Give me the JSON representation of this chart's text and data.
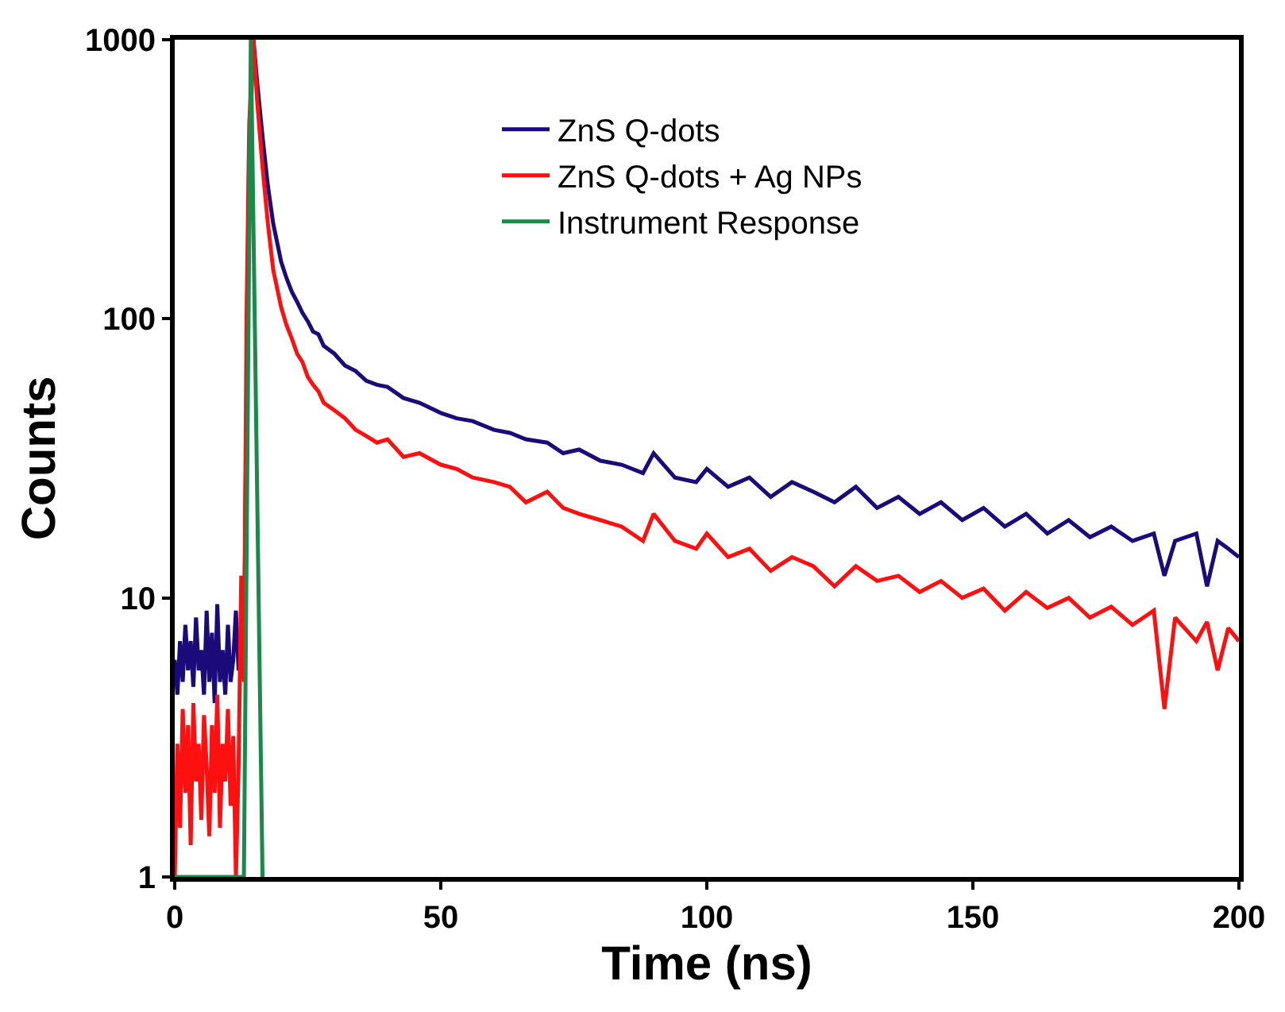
{
  "chart_data": {
    "type": "line",
    "xlabel": "Time (ns)",
    "ylabel": "Counts",
    "log": "y",
    "legend": "top right",
    "marker": "none",
    "line_style": "solid",
    "xlim": [
      0,
      200
    ],
    "xticks": [
      0,
      50,
      100,
      150,
      200
    ],
    "ylim": [
      1,
      1000
    ],
    "yticks": [
      1,
      10,
      100,
      1000
    ],
    "series": [
      {
        "name": "ZnS Q-dots",
        "color": "#1a0a7a",
        "x": [
          0,
          0.5,
          1,
          1.5,
          2,
          2.5,
          3,
          3.5,
          4,
          4.5,
          5,
          5.5,
          6,
          6.5,
          7,
          7.5,
          8,
          8.5,
          9,
          9.5,
          10,
          10.5,
          11,
          11.5,
          12,
          12.5,
          13,
          13.5,
          14,
          14.8,
          15.5,
          16.5,
          17.5,
          18.5,
          20,
          21,
          22,
          23,
          24,
          25,
          26,
          27,
          28,
          30,
          32,
          34,
          36,
          38,
          40,
          43,
          46,
          50,
          53,
          56,
          60,
          63,
          66,
          70,
          73,
          76,
          80,
          84,
          88,
          90,
          94,
          98,
          100,
          104,
          108,
          112,
          116,
          120,
          124,
          128,
          132,
          136,
          140,
          144,
          148,
          152,
          156,
          160,
          164,
          168,
          172,
          176,
          180,
          184,
          186,
          188,
          192,
          194,
          196,
          198,
          200
        ],
        "values": [
          6,
          4.5,
          7,
          5,
          8,
          5.5,
          7,
          4.8,
          8.5,
          5.5,
          6.5,
          4.5,
          9,
          5,
          7.5,
          4.2,
          9.5,
          5,
          6.5,
          4.5,
          8,
          5,
          6,
          9,
          5.5,
          7,
          6,
          50,
          400,
          1000,
          700,
          450,
          300,
          220,
          160,
          140,
          125,
          115,
          105,
          98,
          90,
          88,
          80,
          75,
          68,
          65,
          60,
          58,
          57,
          52,
          50,
          46,
          44,
          43,
          40,
          39,
          37,
          36,
          33,
          34,
          31,
          30,
          28,
          33,
          27,
          26,
          29,
          25,
          27,
          23,
          26,
          24,
          22,
          25,
          21,
          23,
          20,
          22,
          19,
          21,
          18,
          20,
          17,
          19,
          16.5,
          18,
          16,
          17,
          12,
          16,
          17,
          11,
          16,
          15,
          14
        ]
      },
      {
        "name": "ZnS Q-dots + Ag NPs",
        "color": "#ff1010",
        "x": [
          0,
          0.5,
          1,
          1.5,
          2,
          2.5,
          3,
          3.5,
          4,
          4.5,
          5,
          5.5,
          6,
          6.5,
          7,
          7.5,
          8,
          8.5,
          9,
          9.5,
          10,
          10.5,
          11,
          11.5,
          12,
          12.5,
          13,
          13.5,
          14,
          14.8,
          15.5,
          16.5,
          17.5,
          18.5,
          20,
          21,
          22,
          23,
          24,
          25,
          26,
          27,
          28,
          30,
          32,
          34,
          36,
          38,
          40,
          43,
          46,
          50,
          53,
          56,
          60,
          63,
          66,
          70,
          73,
          76,
          80,
          84,
          88,
          90,
          94,
          98,
          100,
          104,
          108,
          112,
          116,
          120,
          124,
          128,
          132,
          136,
          140,
          144,
          148,
          152,
          156,
          160,
          164,
          168,
          172,
          176,
          180,
          184,
          186,
          188,
          192,
          194,
          196,
          198,
          200
        ],
        "values": [
          1,
          3,
          1.5,
          4,
          2,
          3.5,
          1.3,
          4.2,
          2.2,
          3,
          1.6,
          3.8,
          2.5,
          1.4,
          3.5,
          2,
          4.5,
          1.5,
          3,
          2.2,
          4,
          1.8,
          3.2,
          1,
          2.5,
          12,
          5,
          100,
          500,
          1000,
          600,
          350,
          220,
          150,
          110,
          95,
          85,
          75,
          70,
          62,
          58,
          55,
          50,
          47,
          44,
          40,
          38,
          36,
          37,
          32,
          33,
          30,
          29,
          27,
          26,
          25,
          22,
          24,
          21,
          20,
          19,
          18,
          16,
          20,
          16,
          15,
          17,
          14,
          15,
          12.5,
          14,
          13,
          11,
          13,
          11.5,
          12,
          10.5,
          11.5,
          10,
          10.8,
          9,
          10.5,
          9.2,
          10,
          8.5,
          9.3,
          8,
          9,
          4,
          8.5,
          7,
          8.2,
          5.5,
          7.8,
          7
        ]
      },
      {
        "name": "Instrument Response",
        "color": "#1a8a4a",
        "x": [
          0,
          13,
          14.3,
          16.5
        ],
        "values": [
          1,
          1,
          1000,
          1
        ]
      }
    ]
  }
}
